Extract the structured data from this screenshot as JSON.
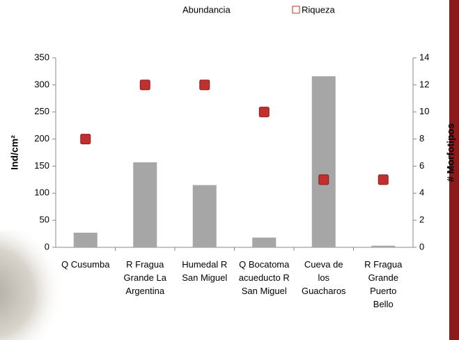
{
  "chart_data": {
    "type": "bar-scatter",
    "y_label": "Ind/cm²",
    "y2_label": "# Morfotipos",
    "categories": [
      "Q Cusumba",
      "R Fragua Grande La Argentina",
      "Humedal R San Miguel",
      "Q Bocatoma acueducto R San Miguel",
      "Cueva de los Guacharos",
      "R Fragua Grande Puerto Bello"
    ],
    "series": [
      {
        "name": "Abundancia",
        "color": "#a6a6a6",
        "kind": "bar",
        "axis": "y",
        "values": [
          27,
          157,
          115,
          18,
          316,
          3
        ]
      },
      {
        "name": "Riqueza",
        "color": "#c0302f",
        "kind": "scatter",
        "axis": "y2",
        "values": [
          8,
          12,
          12,
          10,
          5,
          5
        ]
      }
    ],
    "ylim": [
      0,
      350
    ],
    "yticks": [
      0,
      50,
      100,
      150,
      200,
      250,
      300,
      350
    ],
    "y2lim": [
      0,
      14
    ],
    "y2ticks": [
      0,
      2,
      4,
      6,
      8,
      10,
      12,
      14
    ]
  }
}
